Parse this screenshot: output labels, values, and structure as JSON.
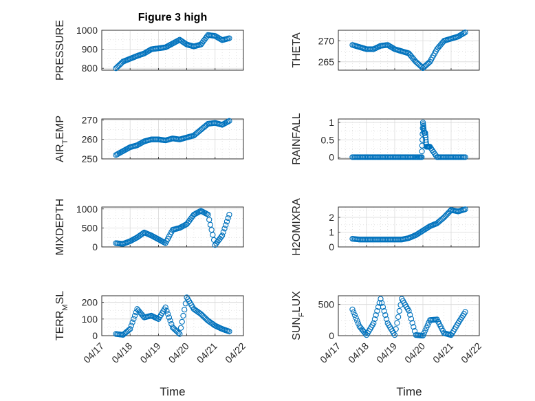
{
  "figure": {
    "title": "Figure 3 high",
    "xlabel": "Time"
  },
  "colors": {
    "marker": "#0072bd",
    "axis": "#262626",
    "grid": "#d9d9d9"
  },
  "chart_data": [
    {
      "type": "scatter",
      "ylabel": "PRESSURE",
      "ylim": [
        790,
        1000
      ],
      "yticks": [
        "800",
        "900",
        "1000"
      ],
      "ytick_values": [
        800,
        900,
        1000
      ],
      "xlim": [
        "04/17",
        "04/22"
      ],
      "xticks": [
        "04/17",
        "04/18",
        "04/19",
        "04/20",
        "04/21",
        "04/22"
      ],
      "show_xticks": false,
      "x": [
        "04/17 12:00",
        "04/17 18:00",
        "04/18 00:00",
        "04/18 06:00",
        "04/18 12:00",
        "04/18 18:00",
        "04/19 00:00",
        "04/19 06:00",
        "04/19 12:00",
        "04/19 18:00",
        "04/20 00:00",
        "04/20 06:00",
        "04/20 12:00",
        "04/20 18:00",
        "04/21 00:00",
        "04/21 06:00",
        "04/21 12:00"
      ],
      "y": [
        800,
        835,
        850,
        865,
        878,
        900,
        905,
        910,
        930,
        950,
        925,
        915,
        925,
        975,
        970,
        948,
        958
      ]
    },
    {
      "type": "scatter",
      "ylabel": "THETA",
      "ylim": [
        263,
        272.5
      ],
      "yticks": [
        "265",
        "270"
      ],
      "ytick_values": [
        265,
        270
      ],
      "xlim": [
        "04/17",
        "04/22"
      ],
      "xticks": [
        "04/17",
        "04/18",
        "04/19",
        "04/20",
        "04/21",
        "04/22"
      ],
      "show_xticks": false,
      "x": [
        "04/17 12:00",
        "04/17 18:00",
        "04/18 00:00",
        "04/18 06:00",
        "04/18 12:00",
        "04/18 18:00",
        "04/19 00:00",
        "04/19 06:00",
        "04/19 12:00",
        "04/19 18:00",
        "04/20 00:00",
        "04/20 06:00",
        "04/20 12:00",
        "04/20 18:00",
        "04/21 00:00",
        "04/21 06:00",
        "04/21 12:00"
      ],
      "y": [
        269,
        268.5,
        268,
        268,
        268.8,
        269,
        268,
        267.5,
        267,
        265,
        263.5,
        265,
        268,
        270,
        270.5,
        271,
        272
      ]
    },
    {
      "type": "scatter",
      "ylabel": "AIR_TEMP",
      "ylim": [
        250,
        270.5
      ],
      "yticks": [
        "250",
        "260",
        "270"
      ],
      "ytick_values": [
        250,
        260,
        270
      ],
      "xlim": [
        "04/17",
        "04/22"
      ],
      "xticks": [
        "04/17",
        "04/18",
        "04/19",
        "04/20",
        "04/21",
        "04/22"
      ],
      "show_xticks": false,
      "x": [
        "04/17 12:00",
        "04/17 18:00",
        "04/18 00:00",
        "04/18 06:00",
        "04/18 12:00",
        "04/18 18:00",
        "04/19 00:00",
        "04/19 06:00",
        "04/19 12:00",
        "04/19 18:00",
        "04/20 00:00",
        "04/20 06:00",
        "04/20 12:00",
        "04/20 18:00",
        "04/21 00:00",
        "04/21 06:00",
        "04/21 12:00"
      ],
      "y": [
        252,
        254,
        256,
        257,
        259,
        260,
        260,
        259.5,
        260.5,
        260,
        261,
        262,
        265,
        268,
        268.5,
        267.5,
        269.5
      ]
    },
    {
      "type": "scatter",
      "ylabel": "RAINFALL",
      "ylim": [
        -0.05,
        1.1
      ],
      "yticks": [
        "0",
        "0.5",
        "1"
      ],
      "ytick_values": [
        0,
        0.5,
        1
      ],
      "xlim": [
        "04/17",
        "04/22"
      ],
      "xticks": [
        "04/17",
        "04/18",
        "04/19",
        "04/20",
        "04/21",
        "04/22"
      ],
      "show_xticks": false,
      "x": [
        "04/17 12:00",
        "04/17 18:00",
        "04/18 00:00",
        "04/18 06:00",
        "04/18 12:00",
        "04/18 18:00",
        "04/19 00:00",
        "04/19 06:00",
        "04/19 12:00",
        "04/19 18:00",
        "04/19 23:00",
        "04/20 00:00",
        "04/20 01:00",
        "04/20 02:00",
        "04/20 03:00",
        "04/20 04:00",
        "04/20 05:00",
        "04/20 06:00",
        "04/20 12:00",
        "04/20 18:00",
        "04/21 00:00",
        "04/21 06:00",
        "04/21 12:00"
      ],
      "y": [
        0,
        0,
        0,
        0,
        0,
        0,
        0,
        0,
        0,
        0,
        0,
        1,
        0.7,
        0.7,
        0.3,
        0.3,
        0.3,
        0.3,
        0,
        0,
        0,
        0,
        0
      ]
    },
    {
      "type": "scatter",
      "ylabel": "MIXDEPTH",
      "ylim": [
        0,
        1050
      ],
      "yticks": [
        "0",
        "500",
        "1000"
      ],
      "ytick_values": [
        0,
        500,
        1000
      ],
      "xlim": [
        "04/17",
        "04/22"
      ],
      "xticks": [
        "04/17",
        "04/18",
        "04/19",
        "04/20",
        "04/21",
        "04/22"
      ],
      "show_xticks": false,
      "x": [
        "04/17 12:00",
        "04/17 18:00",
        "04/18 00:00",
        "04/18 06:00",
        "04/18 12:00",
        "04/18 18:00",
        "04/19 00:00",
        "04/19 06:00",
        "04/19 12:00",
        "04/19 18:00",
        "04/20 00:00",
        "04/20 06:00",
        "04/20 12:00",
        "04/20 18:00",
        "04/21 00:00",
        "04/21 06:00",
        "04/21 12:00"
      ],
      "y": [
        100,
        80,
        150,
        250,
        380,
        300,
        200,
        100,
        450,
        500,
        600,
        850,
        950,
        850,
        50,
        300,
        850
      ]
    },
    {
      "type": "scatter",
      "ylabel": "H2OMIXRA",
      "ylim": [
        0,
        2.7
      ],
      "yticks": [
        "0",
        "1",
        "2"
      ],
      "ytick_values": [
        0,
        1,
        2
      ],
      "xlim": [
        "04/17",
        "04/22"
      ],
      "xticks": [
        "04/17",
        "04/18",
        "04/19",
        "04/20",
        "04/21",
        "04/22"
      ],
      "show_xticks": false,
      "x": [
        "04/17 12:00",
        "04/17 18:00",
        "04/18 00:00",
        "04/18 06:00",
        "04/18 12:00",
        "04/18 18:00",
        "04/19 00:00",
        "04/19 06:00",
        "04/19 12:00",
        "04/19 18:00",
        "04/20 00:00",
        "04/20 06:00",
        "04/20 12:00",
        "04/20 18:00",
        "04/21 00:00",
        "04/21 06:00",
        "04/21 12:00"
      ],
      "y": [
        0.55,
        0.5,
        0.5,
        0.5,
        0.5,
        0.5,
        0.5,
        0.5,
        0.6,
        0.8,
        1.1,
        1.4,
        1.6,
        2,
        2.5,
        2.4,
        2.55
      ]
    },
    {
      "type": "scatter",
      "ylabel": "TERR_MSL",
      "ylim": [
        0,
        240
      ],
      "yticks": [
        "0",
        "100",
        "200"
      ],
      "ytick_values": [
        0,
        100,
        200
      ],
      "xlim": [
        "04/17",
        "04/22"
      ],
      "xticks": [
        "04/17",
        "04/18",
        "04/19",
        "04/20",
        "04/21",
        "04/22"
      ],
      "show_xticks": true,
      "x": [
        "04/17 12:00",
        "04/17 18:00",
        "04/18 00:00",
        "04/18 06:00",
        "04/18 12:00",
        "04/18 18:00",
        "04/19 00:00",
        "04/19 06:00",
        "04/19 12:00",
        "04/19 18:00",
        "04/20 00:00",
        "04/20 06:00",
        "04/20 12:00",
        "04/20 18:00",
        "04/21 00:00",
        "04/21 06:00",
        "04/21 12:00"
      ],
      "y": [
        10,
        5,
        40,
        160,
        110,
        120,
        100,
        170,
        50,
        10,
        230,
        160,
        130,
        90,
        60,
        40,
        25
      ]
    },
    {
      "type": "scatter",
      "ylabel": "SUN_FLUX",
      "ylim": [
        0,
        640
      ],
      "yticks": [
        "0",
        "500"
      ],
      "ytick_values": [
        0,
        500
      ],
      "xlim": [
        "04/17",
        "04/22"
      ],
      "xticks": [
        "04/17",
        "04/18",
        "04/19",
        "04/20",
        "04/21",
        "04/22"
      ],
      "show_xticks": true,
      "x": [
        "04/17 12:00",
        "04/17 18:00",
        "04/18 00:00",
        "04/18 06:00",
        "04/18 12:00",
        "04/18 18:00",
        "04/19 00:00",
        "04/19 06:00",
        "04/19 12:00",
        "04/19 18:00",
        "04/20 00:00",
        "04/20 06:00",
        "04/20 12:00",
        "04/20 18:00",
        "04/21 00:00",
        "04/21 06:00",
        "04/21 12:00"
      ],
      "y": [
        420,
        150,
        10,
        200,
        590,
        200,
        10,
        590,
        400,
        10,
        0,
        250,
        260,
        40,
        10,
        200,
        380
      ]
    }
  ]
}
